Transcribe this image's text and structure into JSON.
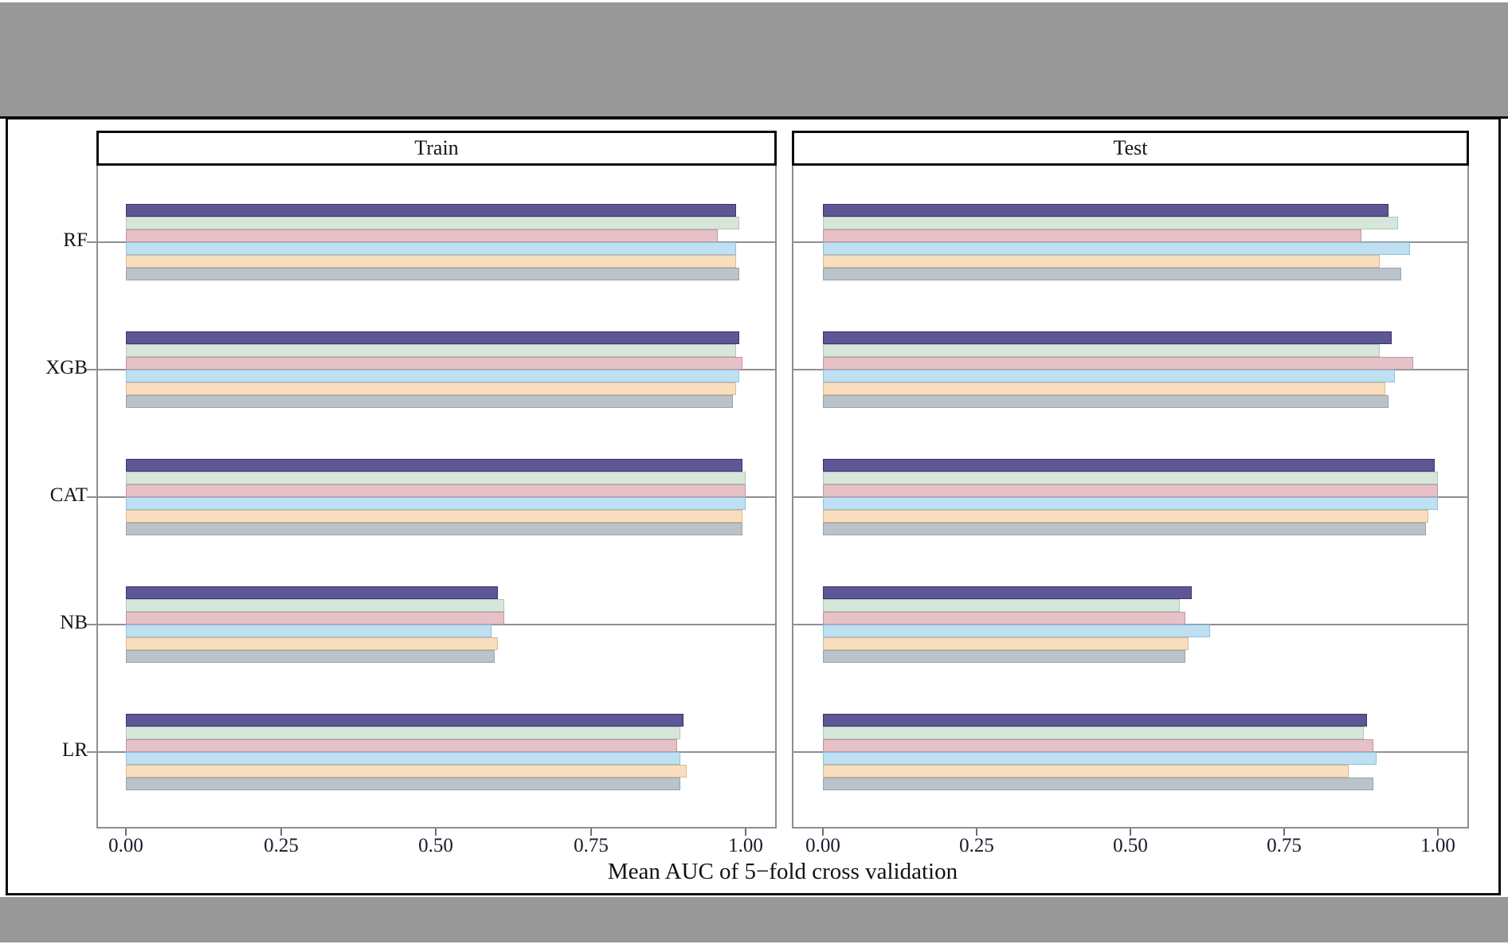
{
  "chart_data": {
    "type": "bar",
    "orientation": "horizontal",
    "categories": [
      "RF",
      "XGB",
      "CAT",
      "NB",
      "LR"
    ],
    "x_axis": {
      "label": "Mean AUC of 5−fold cross validation",
      "ticks": [
        "0.00",
        "0.25",
        "0.50",
        "0.75",
        "1.00"
      ],
      "tick_values": [
        0,
        0.25,
        0.5,
        0.75,
        1
      ],
      "range": [
        0,
        1.05
      ],
      "grid": "horizontal-category-lines"
    },
    "legend": "none-visible",
    "facets": [
      {
        "title": "Train",
        "series": [
          {
            "name": "purple",
            "fill": "#5d5795",
            "border": "#39356b",
            "values": [
              0.985,
              0.99,
              0.995,
              0.6,
              0.9
            ]
          },
          {
            "name": "green",
            "fill": "#d7e6db",
            "border": "#adc9b8",
            "values": [
              0.99,
              0.985,
              1.0,
              0.61,
              0.895
            ]
          },
          {
            "name": "pink",
            "fill": "#e7c1c8",
            "border": "#c295a0",
            "values": [
              0.955,
              0.995,
              1.0,
              0.61,
              0.89
            ]
          },
          {
            "name": "blue",
            "fill": "#bee0f2",
            "border": "#8fc0dd",
            "values": [
              0.985,
              0.99,
              1.0,
              0.59,
              0.895
            ]
          },
          {
            "name": "tan",
            "fill": "#f8debe",
            "border": "#dcba8e",
            "values": [
              0.985,
              0.985,
              0.995,
              0.6,
              0.905
            ]
          },
          {
            "name": "gray",
            "fill": "#bac3c9",
            "border": "#97a3ab",
            "values": [
              0.99,
              0.98,
              0.995,
              0.595,
              0.895
            ]
          }
        ]
      },
      {
        "title": "Test",
        "series": [
          {
            "name": "purple",
            "fill": "#5d5795",
            "border": "#39356b",
            "values": [
              0.92,
              0.925,
              0.995,
              0.6,
              0.885
            ]
          },
          {
            "name": "green",
            "fill": "#d7e6db",
            "border": "#adc9b8",
            "values": [
              0.935,
              0.905,
              1.0,
              0.58,
              0.88
            ]
          },
          {
            "name": "pink",
            "fill": "#e7c1c8",
            "border": "#c295a0",
            "values": [
              0.875,
              0.96,
              1.0,
              0.59,
              0.895
            ]
          },
          {
            "name": "blue",
            "fill": "#bee0f2",
            "border": "#8fc0dd",
            "values": [
              0.955,
              0.93,
              1.0,
              0.63,
              0.9
            ]
          },
          {
            "name": "tan",
            "fill": "#f8debe",
            "border": "#dcba8e",
            "values": [
              0.905,
              0.915,
              0.985,
              0.595,
              0.855
            ]
          },
          {
            "name": "gray",
            "fill": "#bac3c9",
            "border": "#97a3ab",
            "values": [
              0.94,
              0.92,
              0.98,
              0.59,
              0.895
            ]
          }
        ]
      }
    ],
    "colors": {
      "surround_band": "#989898",
      "figure_border": "#0c0c0c",
      "panel_border": "#8f8f8f",
      "gridline": "#8f8f8f",
      "background": "#ffffff"
    }
  }
}
